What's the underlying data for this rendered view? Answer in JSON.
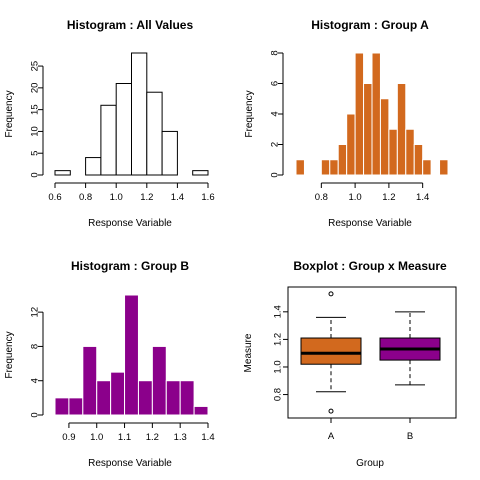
{
  "chart_data": [
    {
      "type": "histogram",
      "title": "Histogram : All Values",
      "xlabel": "Response Variable",
      "ylabel": "Frequency",
      "fill": "#ffffff",
      "bins": [
        0.6,
        0.7,
        0.8,
        0.9,
        1.0,
        1.1,
        1.2,
        1.3,
        1.4,
        1.5,
        1.6
      ],
      "values": [
        1,
        0,
        4,
        16,
        21,
        28,
        19,
        10,
        0,
        1
      ],
      "xticks": [
        "0.6",
        "0.8",
        "1.0",
        "1.2",
        "1.4",
        "1.6"
      ],
      "yticks": [
        "0",
        "5",
        "10",
        "15",
        "20",
        "25"
      ],
      "xlim": [
        0.6,
        1.6
      ],
      "ylim": [
        0,
        28
      ]
    },
    {
      "type": "histogram",
      "title": "Histogram : Group A",
      "xlabel": "Response Variable",
      "ylabel": "Frequency",
      "fill": "#D2691E",
      "bins": [
        0.65,
        0.7,
        0.75,
        0.8,
        0.85,
        0.9,
        0.95,
        1.0,
        1.05,
        1.1,
        1.15,
        1.2,
        1.25,
        1.3,
        1.35,
        1.4,
        1.45,
        1.5,
        1.55
      ],
      "values": [
        1,
        0,
        0,
        1,
        1,
        2,
        4,
        8,
        6,
        8,
        5,
        3,
        6,
        3,
        2,
        1,
        0,
        1
      ],
      "xticks": [
        "0.8",
        "1.0",
        "1.2",
        "1.4"
      ],
      "yticks": [
        "0",
        "2",
        "4",
        "6",
        "8"
      ],
      "xlim": [
        0.65,
        1.55
      ],
      "ylim": [
        0,
        8
      ]
    },
    {
      "type": "histogram",
      "title": "Histogram : Group B",
      "xlabel": "Response Variable",
      "ylabel": "Frequency",
      "fill": "#8B008B",
      "bins": [
        0.85,
        0.9,
        0.95,
        1.0,
        1.05,
        1.1,
        1.15,
        1.2,
        1.25,
        1.3,
        1.35,
        1.4
      ],
      "values": [
        2,
        2,
        8,
        4,
        5,
        14,
        4,
        8,
        4,
        4,
        1
      ],
      "xticks": [
        "0.9",
        "1.0",
        "1.1",
        "1.2",
        "1.3",
        "1.4"
      ],
      "yticks": [
        "0",
        "4",
        "8",
        "12"
      ],
      "xlim": [
        0.85,
        1.4
      ],
      "ylim": [
        0,
        14
      ]
    },
    {
      "type": "boxplot",
      "title": "Boxplot : Group x Measure",
      "xlabel": "Group",
      "ylabel": "Measure",
      "categories": [
        "A",
        "B"
      ],
      "boxes": [
        {
          "name": "A",
          "color": "#D2691E",
          "whisker_low": 0.82,
          "q1": 1.02,
          "median": 1.1,
          "q3": 1.21,
          "whisker_high": 1.36,
          "outliers": [
            1.53,
            0.68
          ]
        },
        {
          "name": "B",
          "color": "#8B008B",
          "whisker_low": 0.87,
          "q1": 1.05,
          "median": 1.13,
          "q3": 1.21,
          "whisker_high": 1.4,
          "outliers": []
        }
      ],
      "yticks": [
        "0.8",
        "1.0",
        "1.2",
        "1.4"
      ],
      "ylim": [
        0.63,
        1.58
      ]
    }
  ]
}
